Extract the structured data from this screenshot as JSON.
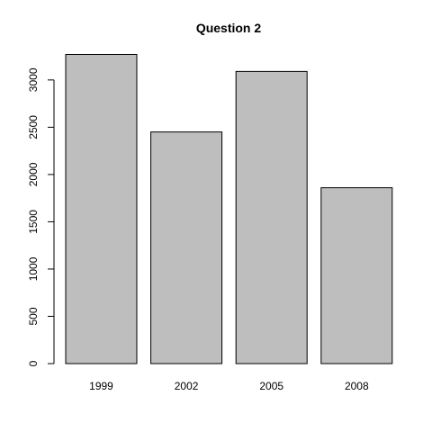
{
  "chart_data": {
    "type": "bar",
    "title": "Question 2",
    "xlabel": "",
    "ylabel": "",
    "categories": [
      "1999",
      "2002",
      "2005",
      "2008"
    ],
    "values": [
      3270,
      2450,
      3090,
      1860
    ],
    "ylim": [
      0,
      3270
    ],
    "yticks": [
      0,
      500,
      1000,
      1500,
      2000,
      2500,
      3000
    ],
    "ytick_labels": [
      "0",
      "500",
      "1000",
      "1500",
      "2000",
      "2500",
      "3000"
    ],
    "grid": false,
    "legend": "none",
    "bar_color": "#bebebe",
    "edge_color": "#000000"
  }
}
